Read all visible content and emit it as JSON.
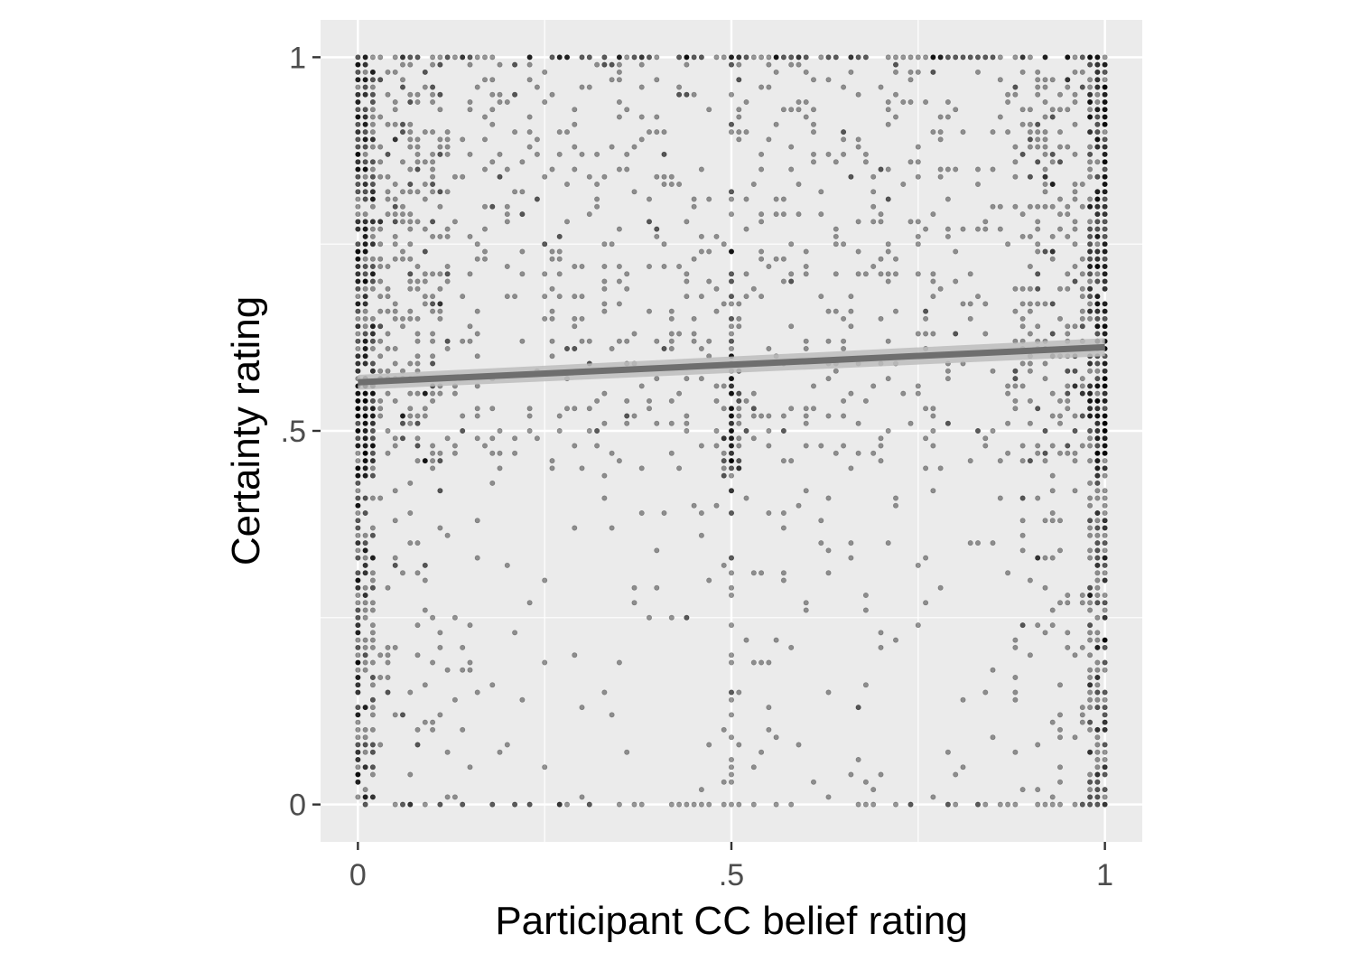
{
  "chart_data": {
    "type": "scatter",
    "xlabel": "Participant CC belief rating",
    "ylabel": "Certainty rating",
    "xlim": [
      -0.05,
      1.05
    ],
    "ylim": [
      -0.05,
      1.05
    ],
    "x_ticks": [
      0,
      0.5,
      1
    ],
    "x_tick_labels": [
      "0",
      ".5",
      "1"
    ],
    "y_ticks": [
      0,
      0.5,
      1
    ],
    "y_tick_labels": [
      "0",
      ".5",
      "1"
    ],
    "grid": true,
    "legend": "none",
    "colors": {
      "panel": "#ebebeb",
      "grid": "#ffffff",
      "points": "#000000",
      "fit_line": "#6e6e6e",
      "fit_band": "#bdbdbd"
    },
    "point_opacity": 0.4,
    "point_resolution": 0.01,
    "points_note_free": true,
    "cluster_columns": [
      0,
      0.01,
      0.02,
      0.5,
      0.98,
      0.99,
      1
    ],
    "approx_point_count": 3000,
    "fit": {
      "method": "linear",
      "x": [
        0,
        1
      ],
      "y": [
        0.565,
        0.612
      ],
      "ci_lower": [
        0.555,
        0.6
      ],
      "ci_upper": [
        0.575,
        0.624
      ]
    }
  }
}
